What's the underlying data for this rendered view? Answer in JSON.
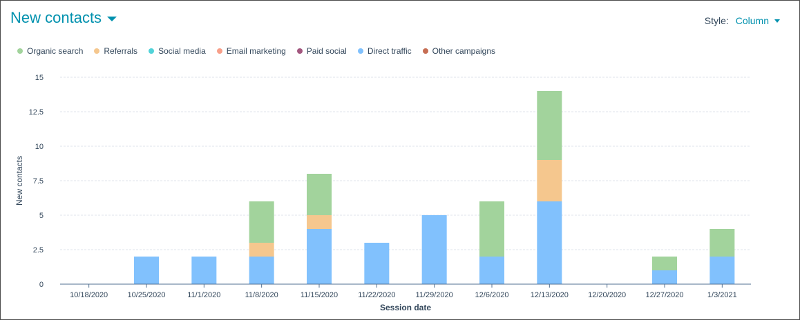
{
  "header": {
    "title": "New contacts",
    "style_label": "Style:",
    "style_value": "Column"
  },
  "legend": [
    {
      "label": "Organic search",
      "color": "#a2d39c"
    },
    {
      "label": "Referrals",
      "color": "#f5c78e"
    },
    {
      "label": "Social media",
      "color": "#51d3d9"
    },
    {
      "label": "Email marketing",
      "color": "#f8a08a"
    },
    {
      "label": "Paid social",
      "color": "#a3577f"
    },
    {
      "label": "Direct traffic",
      "color": "#81c1fd"
    },
    {
      "label": "Other campaigns",
      "color": "#c66e54"
    }
  ],
  "chart_data": {
    "type": "bar",
    "stacked": true,
    "categories": [
      "10/18/2020",
      "10/25/2020",
      "11/1/2020",
      "11/8/2020",
      "11/15/2020",
      "11/22/2020",
      "11/29/2020",
      "12/6/2020",
      "12/13/2020",
      "12/20/2020",
      "12/27/2020",
      "1/3/2021"
    ],
    "series": [
      {
        "name": "Direct traffic",
        "color": "#81c1fd",
        "values": [
          0,
          2,
          2,
          2,
          4,
          3,
          5,
          2,
          6,
          0,
          1,
          2
        ]
      },
      {
        "name": "Referrals",
        "color": "#f5c78e",
        "values": [
          0,
          0,
          0,
          1,
          1,
          0,
          0,
          0,
          3,
          0,
          0,
          0
        ]
      },
      {
        "name": "Organic search",
        "color": "#a2d39c",
        "values": [
          0,
          0,
          0,
          3,
          3,
          0,
          0,
          4,
          5,
          0,
          1,
          2
        ]
      }
    ],
    "xlabel": "Session date",
    "ylabel": "New contacts",
    "ylim": [
      0,
      15
    ],
    "yticks": [
      "0",
      "2.5",
      "5",
      "7.5",
      "10",
      "12.5",
      "15"
    ],
    "ytick_values": [
      0,
      2.5,
      5,
      7.5,
      10,
      12.5,
      15
    ],
    "grid": true,
    "legend_position": "top-left"
  }
}
